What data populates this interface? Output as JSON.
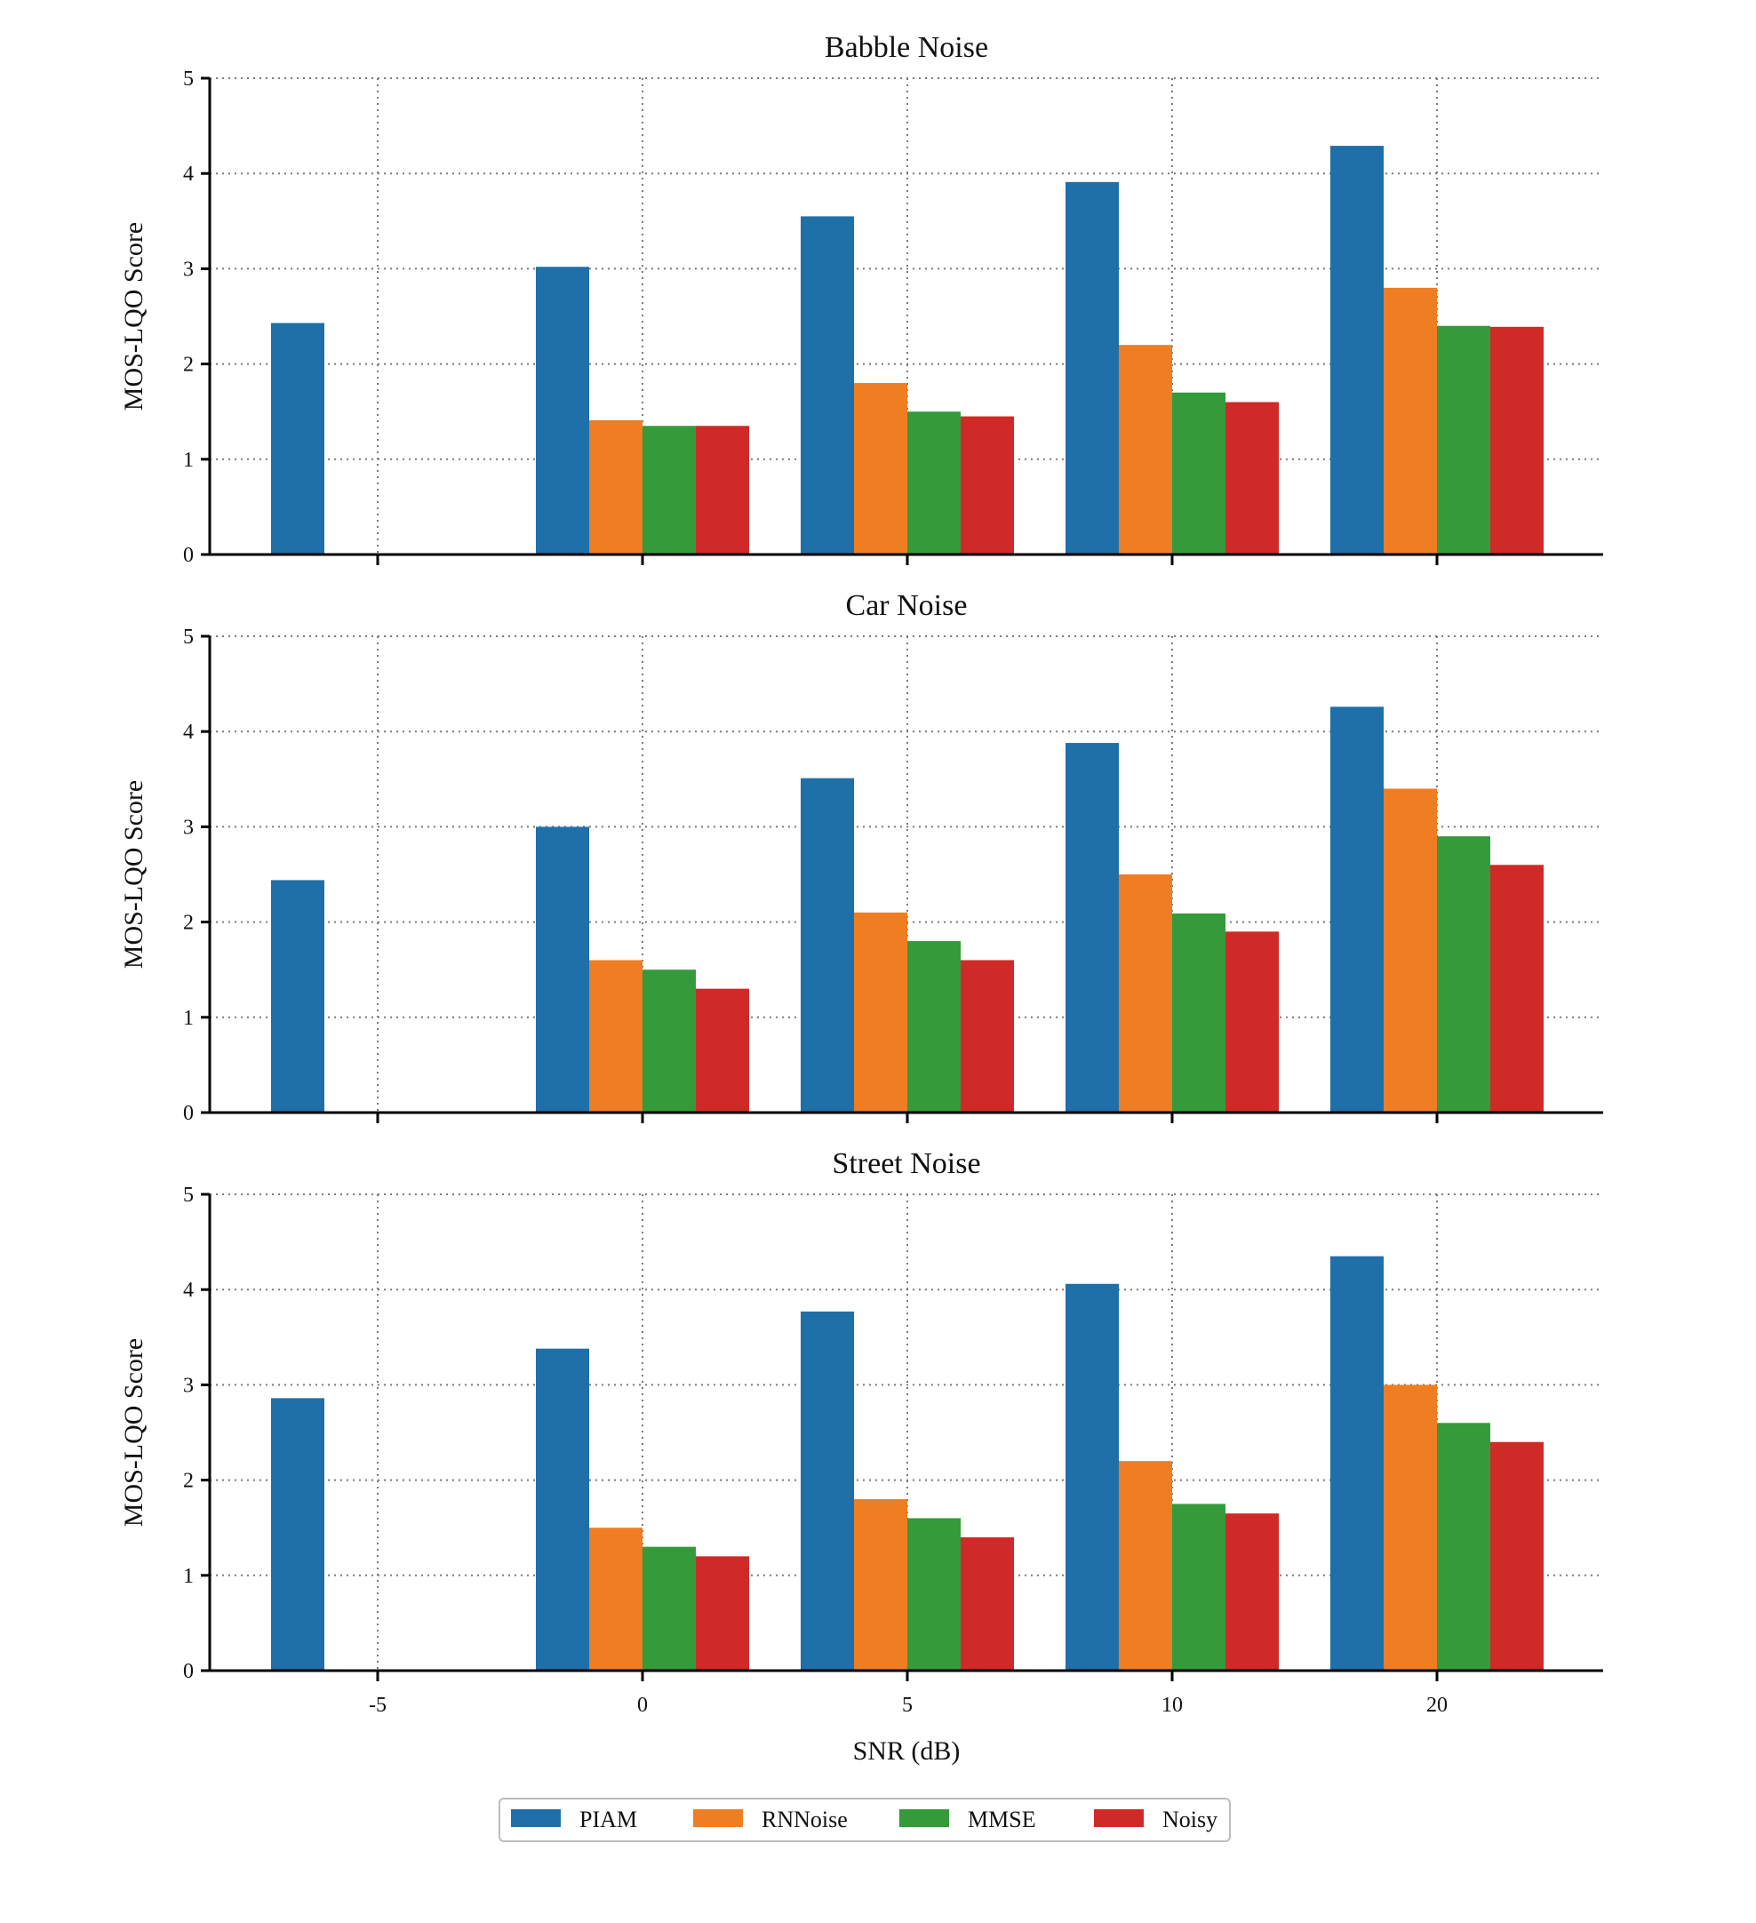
{
  "chart_data": [
    {
      "type": "bar",
      "title": "Babble Noise",
      "ylabel": "MOS-LQO Score",
      "xlabel": "",
      "ylim": [
        0,
        5
      ],
      "yticks": [
        "0",
        "1",
        "2",
        "3",
        "4",
        "5"
      ],
      "categories": [
        "-5",
        "0",
        "5",
        "10",
        "20"
      ],
      "grid": true,
      "series": [
        {
          "name": "PIAM",
          "values": [
            2.43,
            3.02,
            3.55,
            3.91,
            4.29
          ]
        },
        {
          "name": "RNNoise",
          "values": [
            null,
            1.41,
            1.8,
            2.2,
            2.8
          ]
        },
        {
          "name": "MMSE",
          "values": [
            null,
            1.35,
            1.5,
            1.7,
            2.4
          ]
        },
        {
          "name": "Noisy",
          "values": [
            null,
            1.35,
            1.45,
            1.6,
            2.39
          ]
        }
      ]
    },
    {
      "type": "bar",
      "title": "Car Noise",
      "ylabel": "MOS-LQO Score",
      "xlabel": "",
      "ylim": [
        0,
        5
      ],
      "yticks": [
        "0",
        "1",
        "2",
        "3",
        "4",
        "5"
      ],
      "categories": [
        "-5",
        "0",
        "5",
        "10",
        "20"
      ],
      "grid": true,
      "series": [
        {
          "name": "PIAM",
          "values": [
            2.44,
            3.0,
            3.51,
            3.88,
            4.26
          ]
        },
        {
          "name": "RNNoise",
          "values": [
            null,
            1.6,
            2.1,
            2.5,
            3.4
          ]
        },
        {
          "name": "MMSE",
          "values": [
            null,
            1.5,
            1.8,
            2.09,
            2.9
          ]
        },
        {
          "name": "Noisy",
          "values": [
            null,
            1.3,
            1.6,
            1.9,
            2.6
          ]
        }
      ]
    },
    {
      "type": "bar",
      "title": "Street Noise",
      "ylabel": "MOS-LQO Score",
      "xlabel": "SNR (dB)",
      "ylim": [
        0,
        5
      ],
      "yticks": [
        "0",
        "1",
        "2",
        "3",
        "4",
        "5"
      ],
      "categories": [
        "-5",
        "0",
        "5",
        "10",
        "20"
      ],
      "grid": true,
      "series": [
        {
          "name": "PIAM",
          "values": [
            2.86,
            3.38,
            3.77,
            4.06,
            4.35
          ]
        },
        {
          "name": "RNNoise",
          "values": [
            null,
            1.5,
            1.8,
            2.2,
            3.0
          ]
        },
        {
          "name": "MMSE",
          "values": [
            null,
            1.3,
            1.6,
            1.75,
            2.6
          ]
        },
        {
          "name": "Noisy",
          "values": [
            null,
            1.2,
            1.4,
            1.65,
            2.4
          ]
        }
      ]
    }
  ],
  "legend": {
    "position": "bottom-center",
    "entries": [
      "PIAM",
      "RNNoise",
      "MMSE",
      "Noisy"
    ]
  },
  "colors": {
    "PIAM": "#1f6fa9",
    "RNNoise": "#ef7d22",
    "MMSE": "#349a3a",
    "Noisy": "#cf2a27"
  }
}
